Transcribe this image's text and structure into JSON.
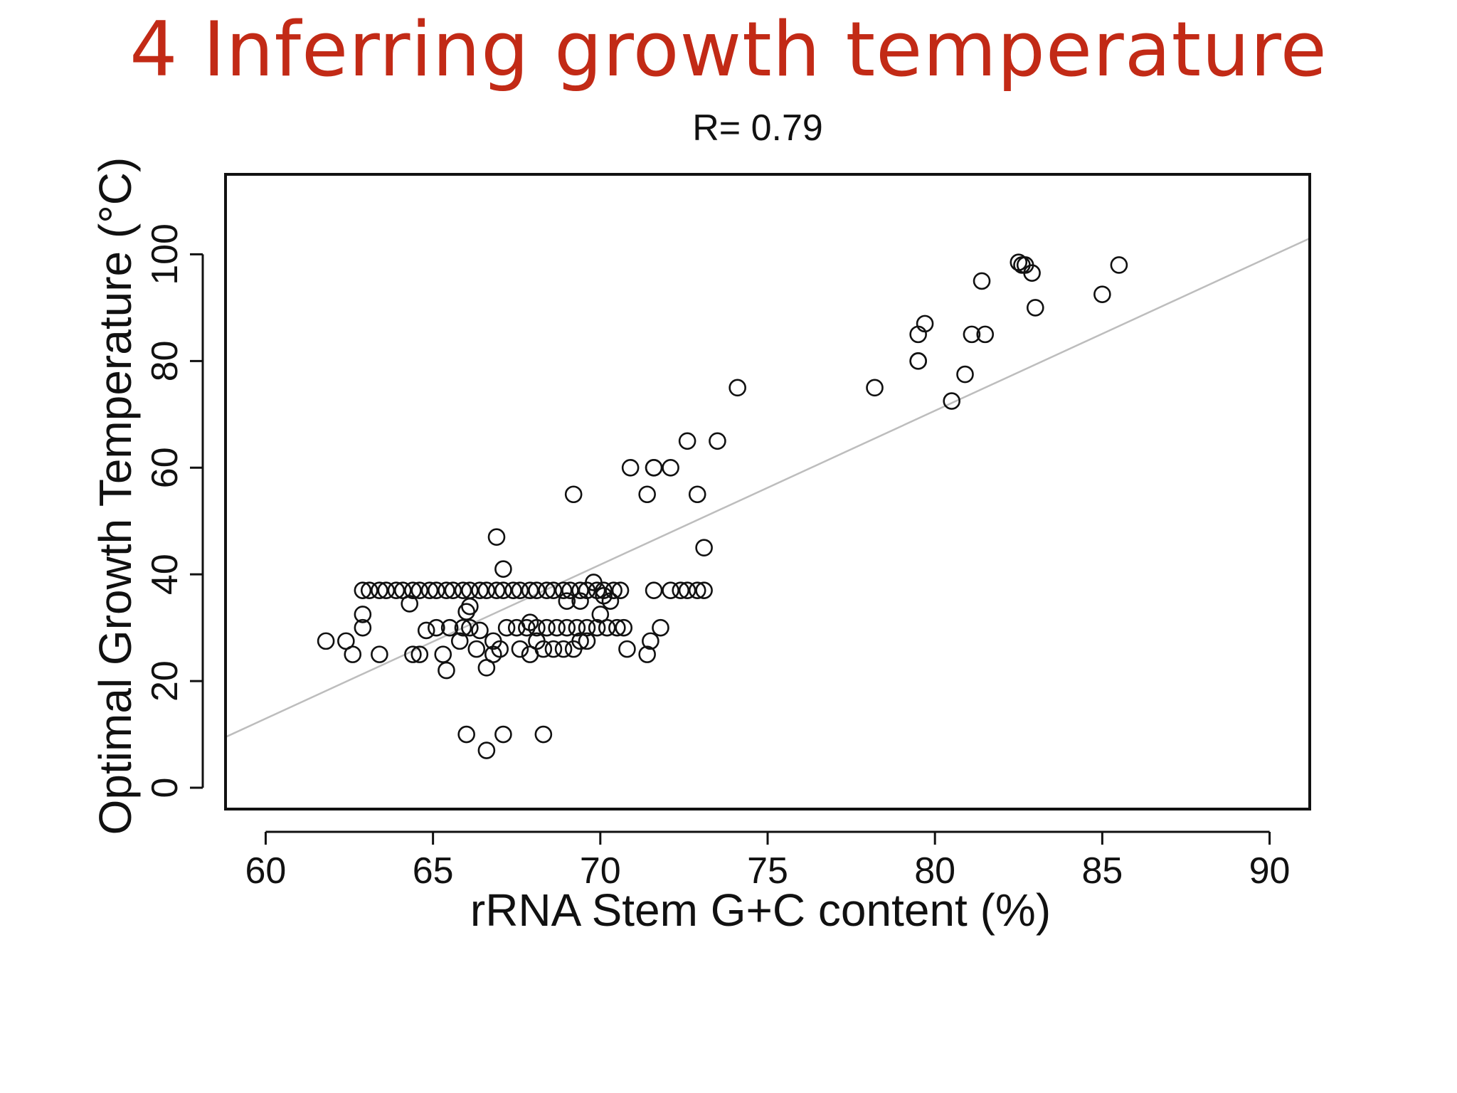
{
  "slide": {
    "title": "4 Inferring growth temperature"
  },
  "colors": {
    "title": "#c22a16",
    "points": "#111111",
    "regression_line": "#bdbdbd",
    "frame": "#111111"
  },
  "chart_data": {
    "type": "scatter",
    "title": "R= 0.79",
    "xlabel": "rRNA Stem G+C content (%)",
    "ylabel": "Optimal Growth Temperature (°C)",
    "xlim": [
      58.8,
      91.2
    ],
    "ylim": [
      -4,
      115
    ],
    "xticks": [
      60,
      65,
      70,
      75,
      80,
      85,
      90
    ],
    "yticks": [
      0,
      20,
      40,
      60,
      80,
      100
    ],
    "grid": false,
    "legend": "none",
    "marker": "open-circle",
    "regression_line": {
      "x": [
        58.8,
        91.2
      ],
      "y": [
        9.5,
        103
      ]
    },
    "points": [
      {
        "x": 61.8,
        "y": 27.5
      },
      {
        "x": 62.4,
        "y": 27.5
      },
      {
        "x": 62.6,
        "y": 25
      },
      {
        "x": 62.9,
        "y": 30
      },
      {
        "x": 62.9,
        "y": 32.5
      },
      {
        "x": 63.4,
        "y": 25
      },
      {
        "x": 64.3,
        "y": 34.5
      },
      {
        "x": 64.6,
        "y": 25
      },
      {
        "x": 64.4,
        "y": 25
      },
      {
        "x": 64.8,
        "y": 29.5
      },
      {
        "x": 65.1,
        "y": 30
      },
      {
        "x": 65.3,
        "y": 25
      },
      {
        "x": 65.5,
        "y": 30
      },
      {
        "x": 65.4,
        "y": 22
      },
      {
        "x": 65.8,
        "y": 27.5
      },
      {
        "x": 65.9,
        "y": 30
      },
      {
        "x": 66.1,
        "y": 30
      },
      {
        "x": 66.3,
        "y": 26
      },
      {
        "x": 66.4,
        "y": 29.5
      },
      {
        "x": 66.6,
        "y": 22.5
      },
      {
        "x": 66.8,
        "y": 25
      },
      {
        "x": 66.8,
        "y": 27.5
      },
      {
        "x": 67.0,
        "y": 26
      },
      {
        "x": 66.0,
        "y": 33
      },
      {
        "x": 66.1,
        "y": 34
      },
      {
        "x": 66.0,
        "y": 10
      },
      {
        "x": 66.6,
        "y": 7
      },
      {
        "x": 67.1,
        "y": 10
      },
      {
        "x": 68.3,
        "y": 10
      },
      {
        "x": 66.9,
        "y": 47
      },
      {
        "x": 67.1,
        "y": 41
      },
      {
        "x": 62.9,
        "y": 37
      },
      {
        "x": 63.1,
        "y": 37
      },
      {
        "x": 63.4,
        "y": 37
      },
      {
        "x": 63.6,
        "y": 37
      },
      {
        "x": 63.9,
        "y": 37
      },
      {
        "x": 64.1,
        "y": 37
      },
      {
        "x": 64.4,
        "y": 37
      },
      {
        "x": 64.6,
        "y": 37
      },
      {
        "x": 64.9,
        "y": 37
      },
      {
        "x": 65.1,
        "y": 37
      },
      {
        "x": 65.4,
        "y": 37
      },
      {
        "x": 65.6,
        "y": 37
      },
      {
        "x": 65.9,
        "y": 37
      },
      {
        "x": 66.1,
        "y": 37
      },
      {
        "x": 66.4,
        "y": 37
      },
      {
        "x": 66.6,
        "y": 37
      },
      {
        "x": 66.9,
        "y": 37
      },
      {
        "x": 67.1,
        "y": 37
      },
      {
        "x": 67.4,
        "y": 37
      },
      {
        "x": 67.6,
        "y": 37
      },
      {
        "x": 67.9,
        "y": 37
      },
      {
        "x": 68.1,
        "y": 37
      },
      {
        "x": 68.4,
        "y": 37
      },
      {
        "x": 68.6,
        "y": 37
      },
      {
        "x": 68.9,
        "y": 37
      },
      {
        "x": 69.1,
        "y": 37
      },
      {
        "x": 69.4,
        "y": 37
      },
      {
        "x": 69.6,
        "y": 37
      },
      {
        "x": 69.9,
        "y": 37
      },
      {
        "x": 70.1,
        "y": 37
      },
      {
        "x": 70.4,
        "y": 37
      },
      {
        "x": 70.6,
        "y": 37
      },
      {
        "x": 71.6,
        "y": 37
      },
      {
        "x": 72.1,
        "y": 37
      },
      {
        "x": 72.4,
        "y": 37
      },
      {
        "x": 72.6,
        "y": 37
      },
      {
        "x": 72.9,
        "y": 37
      },
      {
        "x": 73.1,
        "y": 37
      },
      {
        "x": 69.0,
        "y": 35
      },
      {
        "x": 69.4,
        "y": 35
      },
      {
        "x": 69.8,
        "y": 38.5
      },
      {
        "x": 70.1,
        "y": 36
      },
      {
        "x": 70.3,
        "y": 35
      },
      {
        "x": 67.2,
        "y": 30
      },
      {
        "x": 67.5,
        "y": 30
      },
      {
        "x": 67.8,
        "y": 30
      },
      {
        "x": 68.1,
        "y": 30
      },
      {
        "x": 68.4,
        "y": 30
      },
      {
        "x": 68.7,
        "y": 30
      },
      {
        "x": 69.0,
        "y": 30
      },
      {
        "x": 69.3,
        "y": 30
      },
      {
        "x": 69.6,
        "y": 30
      },
      {
        "x": 69.9,
        "y": 30
      },
      {
        "x": 70.2,
        "y": 30
      },
      {
        "x": 70.5,
        "y": 30
      },
      {
        "x": 70.7,
        "y": 30
      },
      {
        "x": 71.8,
        "y": 30
      },
      {
        "x": 70.0,
        "y": 32.5
      },
      {
        "x": 67.9,
        "y": 31
      },
      {
        "x": 67.6,
        "y": 26
      },
      {
        "x": 67.9,
        "y": 25
      },
      {
        "x": 68.1,
        "y": 27.5
      },
      {
        "x": 68.3,
        "y": 26
      },
      {
        "x": 68.6,
        "y": 26
      },
      {
        "x": 68.9,
        "y": 26
      },
      {
        "x": 69.2,
        "y": 26
      },
      {
        "x": 69.4,
        "y": 27.5
      },
      {
        "x": 69.6,
        "y": 27.5
      },
      {
        "x": 70.8,
        "y": 26
      },
      {
        "x": 71.4,
        "y": 25
      },
      {
        "x": 71.5,
        "y": 27.5
      },
      {
        "x": 69.2,
        "y": 55
      },
      {
        "x": 70.9,
        "y": 60
      },
      {
        "x": 71.4,
        "y": 55
      },
      {
        "x": 71.6,
        "y": 60
      },
      {
        "x": 71.6,
        "y": 60
      },
      {
        "x": 72.1,
        "y": 60
      },
      {
        "x": 72.6,
        "y": 65
      },
      {
        "x": 72.9,
        "y": 55
      },
      {
        "x": 73.1,
        "y": 45
      },
      {
        "x": 73.5,
        "y": 65
      },
      {
        "x": 74.1,
        "y": 75
      },
      {
        "x": 78.2,
        "y": 75
      },
      {
        "x": 79.5,
        "y": 80
      },
      {
        "x": 79.5,
        "y": 80
      },
      {
        "x": 79.5,
        "y": 85
      },
      {
        "x": 79.7,
        "y": 87
      },
      {
        "x": 80.5,
        "y": 72.5
      },
      {
        "x": 80.9,
        "y": 77.5
      },
      {
        "x": 81.1,
        "y": 85
      },
      {
        "x": 81.5,
        "y": 85
      },
      {
        "x": 81.4,
        "y": 95
      },
      {
        "x": 82.5,
        "y": 98.5
      },
      {
        "x": 82.6,
        "y": 98
      },
      {
        "x": 82.7,
        "y": 98
      },
      {
        "x": 82.9,
        "y": 96.5
      },
      {
        "x": 83.0,
        "y": 90
      },
      {
        "x": 85.0,
        "y": 92.5
      },
      {
        "x": 85.5,
        "y": 98
      }
    ]
  }
}
